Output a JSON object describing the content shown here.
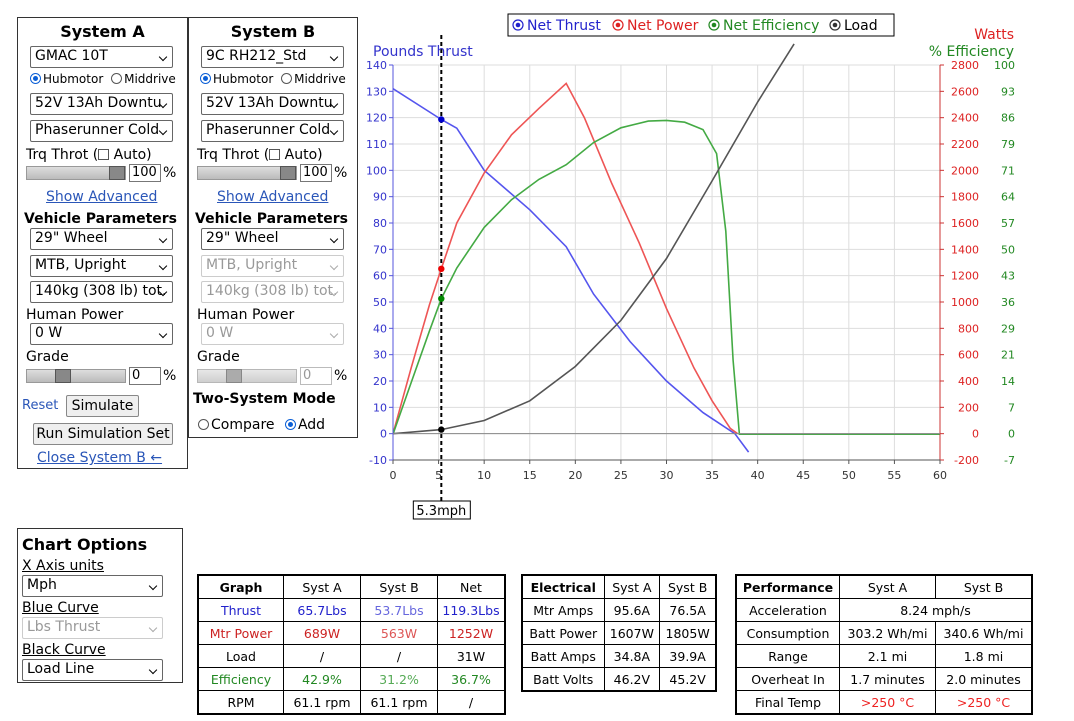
{
  "system_a": {
    "title": "System A",
    "motor": "GMAC 10T",
    "motor_type_options": [
      "Hubmotor",
      "Middrive"
    ],
    "battery": "52V 13Ah Downtu",
    "controller": "Phaserunner Cold",
    "trq_throt_label": "Trq Throt (",
    "auto_label": "Auto)",
    "throttle_value": "100",
    "throttle_level": 1.0,
    "percent": "%",
    "show_advanced": "Show Advanced",
    "vehicle_params": "Vehicle Parameters",
    "wheel": "29\"  Wheel",
    "frame": "MTB, Upright",
    "weight": "140kg (308 lb) tot.",
    "human_power_label": "Human Power",
    "human_power": "0 W",
    "grade_label": "Grade",
    "grade_value": "0",
    "reset": "Reset",
    "simulate": "Simulate",
    "run_set": "Run Simulation Set",
    "close_b": "Close System B ←"
  },
  "system_b": {
    "title": "System B",
    "motor": "9C RH212_Std",
    "motor_type_options": [
      "Hubmotor",
      "Middrive"
    ],
    "battery": "52V 13Ah Downtu",
    "controller": "Phaserunner Cold",
    "trq_throt_label": "Trq Throt (",
    "auto_label": "Auto)",
    "throttle_value": "100",
    "throttle_level": 1.0,
    "percent": "%",
    "show_advanced": "Show Advanced",
    "vehicle_params": "Vehicle Parameters",
    "wheel": "29\"  Wheel",
    "frame": "MTB, Upright",
    "weight": "140kg (308 lb) tot.",
    "human_power_label": "Human Power",
    "human_power": "0 W",
    "grade_label": "Grade",
    "grade_value": "0",
    "two_system_mode": "Two-System Mode",
    "compare": "Compare",
    "add": "Add"
  },
  "chart_options": {
    "title": "Chart Options",
    "x_axis_label": "X Axis units",
    "x_axis_value": "Mph",
    "blue_curve_label": "Blue Curve",
    "blue_curve_value": "Lbs Thrust",
    "black_curve_label": "Black Curve",
    "black_curve_value": "Load Line"
  },
  "colors": {
    "thrust": "#5555ee",
    "power": "#ee5555",
    "efficiency": "#44aa44",
    "load": "#555555"
  },
  "chart_data": {
    "type": "line",
    "legend": [
      "Net Thrust",
      "Net Power",
      "Net Efficiency",
      "Load"
    ],
    "legend_placement": "top",
    "left_axis_title": "Pounds Thrust",
    "right_axis_title_1": "Watts",
    "right_axis_title_2": "% Efficiency",
    "xlim": [
      0,
      60
    ],
    "x_ticks": [
      "0",
      "5",
      "10",
      "15",
      "20",
      "25",
      "30",
      "35",
      "40",
      "45",
      "50",
      "55",
      "60"
    ],
    "y_left_lim": [
      -10,
      140
    ],
    "y_left_ticks": [
      "-10",
      "0",
      "10",
      "20",
      "30",
      "40",
      "50",
      "60",
      "70",
      "80",
      "90",
      "100",
      "110",
      "120",
      "130",
      "140"
    ],
    "y_watts_ticks": [
      "-200",
      "0",
      "200",
      "400",
      "600",
      "800",
      "1000",
      "1200",
      "1400",
      "1600",
      "1800",
      "2000",
      "2200",
      "2400",
      "2600",
      "2800"
    ],
    "y_eff_ticks": [
      "-7",
      "0",
      "7",
      "14",
      "21",
      "29",
      "36",
      "43",
      "50",
      "57",
      "64",
      "71",
      "79",
      "86",
      "93",
      "100"
    ],
    "grid": true,
    "cursor_x": 5.3,
    "cursor_label": "5.3mph",
    "series": [
      {
        "name": "Net Thrust",
        "axis": "lbs",
        "x": [
          0,
          5.3,
          7,
          10,
          15,
          19,
          22,
          26,
          30,
          34,
          37.5,
          39
        ],
        "y": [
          131,
          119.3,
          116,
          100,
          85,
          71,
          53,
          35,
          20,
          8,
          0,
          -7
        ]
      },
      {
        "name": "Net Power",
        "axis": "watts",
        "x": [
          0,
          2,
          4,
          5.3,
          7,
          10,
          13,
          16,
          19,
          21,
          24,
          27,
          30,
          33,
          35,
          37,
          37.8
        ],
        "y": [
          0,
          500,
          980,
          1252,
          1600,
          1980,
          2270,
          2470,
          2660,
          2400,
          1900,
          1450,
          950,
          500,
          250,
          40,
          0
        ]
      },
      {
        "name": "Net Efficiency",
        "axis": "efficiency",
        "x": [
          0,
          2,
          4,
          5.3,
          7,
          10,
          13,
          16,
          19,
          22,
          25,
          28,
          30,
          32,
          34,
          35.5,
          36.5,
          37.3,
          38,
          60
        ],
        "y": [
          0,
          14,
          28,
          36.7,
          45,
          56,
          63.5,
          69,
          73,
          79,
          83,
          84.8,
          85,
          84.5,
          82.5,
          76,
          55,
          20,
          0,
          0
        ]
      },
      {
        "name": "Load",
        "axis": "watts",
        "x": [
          0,
          5.3,
          10,
          15,
          20,
          25,
          30,
          35,
          40,
          44
        ],
        "y": [
          0,
          31,
          100,
          250,
          510,
          860,
          1330,
          1920,
          2520,
          2960
        ]
      }
    ]
  },
  "graph_table": {
    "headers": [
      "Graph",
      "Syst A",
      "Syst B",
      "Net"
    ],
    "rows": [
      [
        "Thrust",
        "65.7Lbs",
        "53.7Lbs",
        "119.3Lbs"
      ],
      [
        "Mtr Power",
        "689W",
        "563W",
        "1252W"
      ],
      [
        "Load",
        "/",
        "/",
        "31W"
      ],
      [
        "Efficiency",
        "42.9%",
        "31.2%",
        "36.7%"
      ],
      [
        "RPM",
        "61.1 rpm",
        "61.1 rpm",
        "/"
      ]
    ]
  },
  "electrical_table": {
    "headers": [
      "Electrical",
      "Syst A",
      "Syst B"
    ],
    "rows": [
      [
        "Mtr Amps",
        "95.6A",
        "76.5A"
      ],
      [
        "Batt Power",
        "1607W",
        "1805W"
      ],
      [
        "Batt Amps",
        "34.8A",
        "39.9A"
      ],
      [
        "Batt Volts",
        "46.2V",
        "45.2V"
      ]
    ]
  },
  "performance_table": {
    "headers": [
      "Performance",
      "Syst A",
      "Syst B"
    ],
    "acceleration_label": "Acceleration",
    "acceleration": "8.24 mph/s",
    "rows": [
      [
        "Consumption",
        "303.2 Wh/mi",
        "340.6 Wh/mi"
      ],
      [
        "Range",
        "2.1 mi",
        "1.8 mi"
      ],
      [
        "Overheat In",
        "1.7 minutes",
        "2.0 minutes"
      ],
      [
        "Final Temp",
        ">250 °C",
        ">250 °C"
      ]
    ]
  }
}
